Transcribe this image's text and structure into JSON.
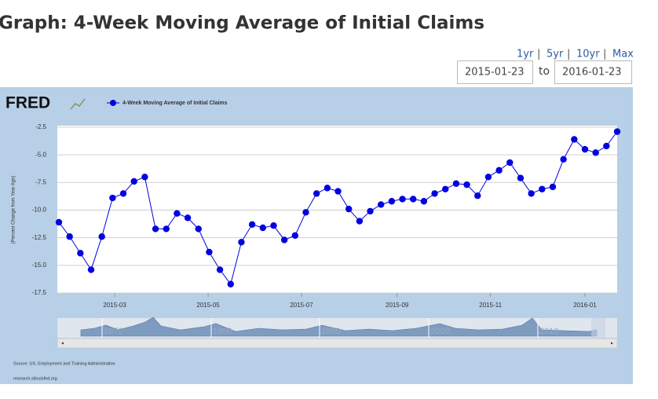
{
  "page": {
    "title": "Graph: 4-Week Moving Average of Initial Claims",
    "ranges": [
      "1yr",
      "5yr",
      "10yr",
      "Max"
    ],
    "separator": "|",
    "start_date": "2015-01-23",
    "to_label": "to",
    "end_date": "2016-01-23",
    "logo": "FRED",
    "source": "Source: US. Employment and Training Administration",
    "site": "research.stlouisfed.org",
    "navigator_labels": [
      "1970",
      "1980",
      "1990",
      "2000",
      "2010"
    ]
  },
  "chart_data": {
    "type": "line",
    "y_label": "(Percent Change from Year Ago)",
    "categories": [
      null,
      null,
      null,
      null,
      null,
      null,
      null,
      null,
      null,
      null,
      null,
      null,
      null,
      null,
      null,
      null,
      null,
      null,
      null,
      null,
      null,
      null,
      null,
      null,
      null,
      null,
      null,
      null,
      null,
      null,
      null,
      null,
      null,
      null,
      null,
      null,
      null,
      null,
      null,
      null,
      null,
      null,
      null,
      null,
      null,
      null,
      null,
      null,
      null,
      null,
      null,
      null,
      null
    ],
    "series": [
      {
        "name": "4-Week Moving Average of Initial Claims",
        "color": "#0000e0",
        "values": [
          -11.1,
          -12.4,
          -13.9,
          -15.4,
          -12.4,
          -8.9,
          -8.5,
          -7.4,
          -7.0,
          -11.7,
          -11.7,
          -10.3,
          -10.7,
          -11.7,
          -13.8,
          -15.4,
          -16.7,
          -12.9,
          -11.3,
          -11.6,
          -11.4,
          -12.7,
          -12.3,
          -10.2,
          -8.5,
          -8.0,
          -8.3,
          -9.9,
          -11.0,
          -10.1,
          -9.5,
          -9.2,
          -9.0,
          -9.0,
          -9.2,
          -8.5,
          -8.1,
          -7.6,
          -7.7,
          -8.7,
          -7.0,
          -6.4,
          -5.7,
          -7.1,
          -8.5,
          -8.1,
          -7.9,
          -5.4,
          -3.6,
          -4.5,
          -4.8,
          -4.2,
          -2.9
        ]
      }
    ],
    "xlim": [
      0,
      52
    ],
    "xticks": [
      {
        "value": 5.2,
        "label": "2015-03"
      },
      {
        "value": 13.9,
        "label": "2015-05"
      },
      {
        "value": 22.6,
        "label": "2015-07"
      },
      {
        "value": 31.5,
        "label": "2015-09"
      },
      {
        "value": 40.2,
        "label": "2015-11"
      },
      {
        "value": 49.0,
        "label": "2016-01"
      }
    ],
    "ylim": [
      -17.5,
      -2.5
    ],
    "yticks": [
      -2.5,
      {
        "value": -5,
        "label": "-5.0"
      },
      -7.5,
      {
        "value": -10,
        "label": "-10.0"
      },
      -12.5,
      {
        "value": -15,
        "label": "-15.0"
      },
      -17.5
    ],
    "grid": true,
    "legend": "top-left"
  }
}
